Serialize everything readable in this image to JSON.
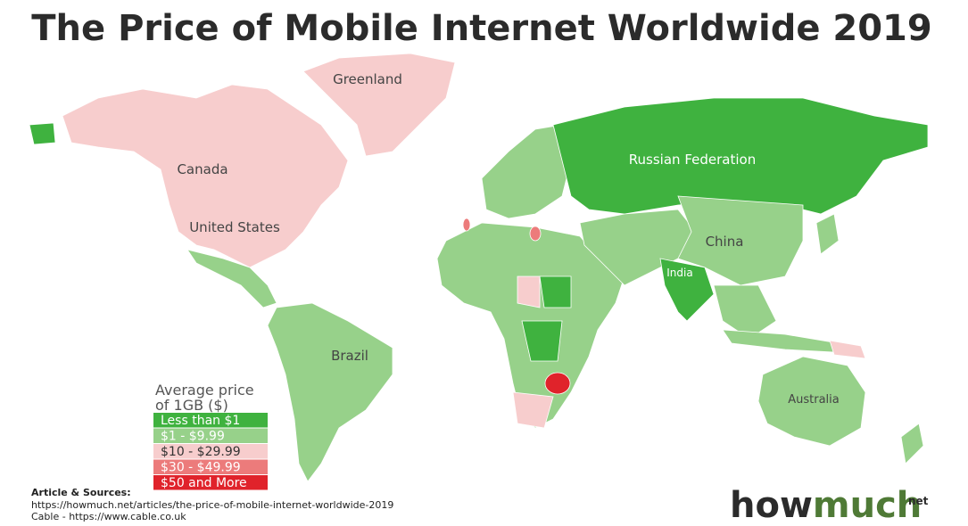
{
  "title": "The Price of Mobile Internet Worldwide 2019",
  "map_labels": [
    "Greenland",
    "Canada",
    "United States",
    "Russian Federation",
    "China",
    "India",
    "Brazil",
    "Australia"
  ],
  "legend": {
    "title_lines": [
      "Average price",
      "of 1GB ($)"
    ],
    "items": [
      {
        "label": "Less than $1",
        "color": "#3fb23f"
      },
      {
        "label": "$1 - $9.99",
        "color": "#97d18a"
      },
      {
        "label": "$10 - $29.99",
        "color": "#f7cdcd"
      },
      {
        "label": "$30 - $49.99",
        "color": "#ec7b7b"
      },
      {
        "label": "$50 and More",
        "color": "#e0232b"
      }
    ]
  },
  "sources": {
    "heading": "Article & Sources:",
    "lines": [
      "https://howmuch.net/articles/the-price-of-mobile-internet-worldwide-2019",
      "Cable - https://www.cable.co.uk"
    ]
  },
  "logo": {
    "brand_start": "how",
    "brand_end": "much",
    "suffix": "net"
  }
}
